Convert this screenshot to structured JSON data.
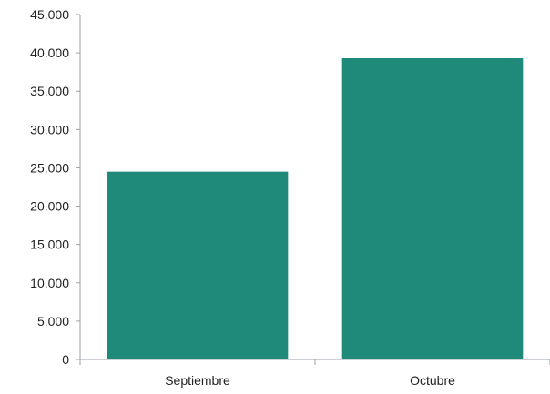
{
  "chart_data": {
    "type": "bar",
    "categories": [
      "Septiembre",
      "Octubre"
    ],
    "values": [
      24500,
      39300
    ],
    "ylim": [
      0,
      45000
    ],
    "y_ticks": [
      0,
      5000,
      10000,
      15000,
      20000,
      25000,
      30000,
      35000,
      40000,
      45000
    ],
    "y_tick_labels": [
      "0",
      "5.000",
      "10.000",
      "15.000",
      "20.000",
      "25.000",
      "30.000",
      "35.000",
      "40.000",
      "45.000"
    ],
    "title": "",
    "xlabel": "",
    "ylabel": "",
    "grid": false,
    "legend": false,
    "bar_color": "#1f8a7a"
  }
}
